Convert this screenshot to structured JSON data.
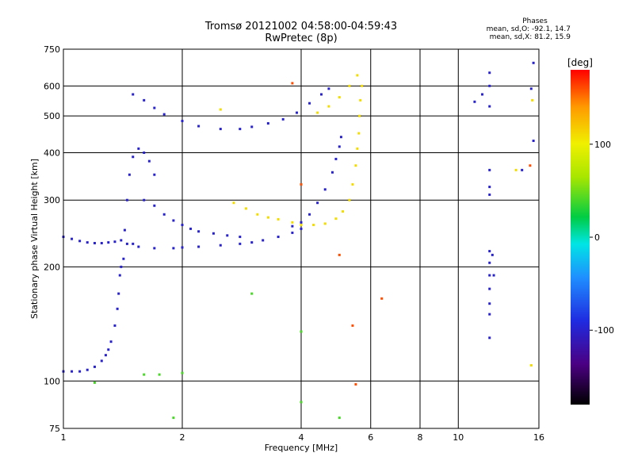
{
  "title": {
    "line1": "Tromsø 20121002 04:58:00-04:59:43",
    "line2": "RwPretec (8p)"
  },
  "phase_stats": {
    "label": "Phases",
    "o_line": "mean, sd,O: -92.1, 14.7",
    "x_line": "mean, sd,X: 81.2, 15.9"
  },
  "colorbar": {
    "unit": "[deg]",
    "ticks": [
      {
        "label": "100",
        "value": 100
      },
      {
        "label": "0",
        "value": 0
      },
      {
        "label": "-100",
        "value": -100
      }
    ],
    "range": [
      -180,
      180
    ]
  },
  "chart_data": {
    "type": "scatter",
    "title": "Tromsø 20121002 04:58:00-04:59:43",
    "subtitle": "RwPretec (8p)",
    "xlabel": "Frequency [MHz]",
    "ylabel": "Stationary phase Virtual Height [km]",
    "xscale": "log",
    "yscale": "log",
    "xlim": [
      1,
      16
    ],
    "ylim": [
      75,
      750
    ],
    "xticks": [
      {
        "label": "1",
        "value": 1
      },
      {
        "label": "2",
        "value": 2
      },
      {
        "label": "4",
        "value": 4
      },
      {
        "label": "6",
        "value": 6
      },
      {
        "label": "8",
        "value": 8
      },
      {
        "label": "10",
        "value": 10
      },
      {
        "label": "16",
        "value": 16
      }
    ],
    "yticks": [
      {
        "label": "75",
        "value": 75
      },
      {
        "label": "100",
        "value": 100
      },
      {
        "label": "200",
        "value": 200
      },
      {
        "label": "300",
        "value": 300
      },
      {
        "label": "400",
        "value": 400
      },
      {
        "label": "500",
        "value": 500
      },
      {
        "label": "600",
        "value": 600
      },
      {
        "label": "750",
        "value": 750
      }
    ],
    "grid": true,
    "color_encoding": "phase [deg]",
    "traces": [
      {
        "name": "",
        "phase": -100,
        "points": [
          [
            1.0,
            240
          ],
          [
            1.05,
            237
          ],
          [
            1.1,
            234
          ],
          [
            1.15,
            232
          ],
          [
            1.2,
            231
          ],
          [
            1.25,
            231
          ],
          [
            1.3,
            232
          ],
          [
            1.35,
            233
          ],
          [
            1.4,
            235
          ]
        ]
      },
      {
        "name": "",
        "phase": -100,
        "points": [
          [
            1.0,
            106
          ],
          [
            1.05,
            106
          ],
          [
            1.1,
            106
          ],
          [
            1.15,
            107
          ],
          [
            1.2,
            109
          ],
          [
            1.25,
            113
          ],
          [
            1.28,
            117
          ],
          [
            1.3,
            121
          ],
          [
            1.32,
            127
          ],
          [
            1.35,
            140
          ],
          [
            1.37,
            155
          ],
          [
            1.38,
            170
          ],
          [
            1.39,
            190
          ],
          [
            1.4,
            200
          ],
          [
            1.42,
            210
          ]
        ]
      },
      {
        "name": "",
        "phase": -100,
        "points": [
          [
            1.43,
            250
          ],
          [
            1.45,
            300
          ],
          [
            1.47,
            350
          ],
          [
            1.5,
            390
          ],
          [
            1.55,
            410
          ],
          [
            1.6,
            400
          ],
          [
            1.65,
            380
          ],
          [
            1.7,
            350
          ]
        ]
      },
      {
        "name": "",
        "phase": -100,
        "points": [
          [
            1.5,
            230
          ],
          [
            1.6,
            300
          ],
          [
            1.7,
            290
          ],
          [
            1.8,
            275
          ],
          [
            1.9,
            265
          ],
          [
            2.0,
            258
          ],
          [
            2.1,
            252
          ],
          [
            2.2,
            248
          ],
          [
            2.4,
            245
          ],
          [
            2.6,
            242
          ],
          [
            2.8,
            240
          ]
        ]
      },
      {
        "name": "",
        "phase": -100,
        "points": [
          [
            1.45,
            230
          ],
          [
            1.55,
            226
          ],
          [
            1.7,
            224
          ],
          [
            1.9,
            224
          ],
          [
            2.0,
            225
          ],
          [
            2.2,
            226
          ],
          [
            2.5,
            228
          ],
          [
            2.8,
            230
          ],
          [
            3.0,
            232
          ],
          [
            3.2,
            235
          ],
          [
            3.5,
            240
          ],
          [
            3.8,
            246
          ],
          [
            4.0,
            252
          ]
        ]
      },
      {
        "name": "",
        "phase": -100,
        "points": [
          [
            3.8,
            256
          ],
          [
            4.0,
            262
          ],
          [
            4.2,
            275
          ],
          [
            4.4,
            295
          ],
          [
            4.6,
            320
          ],
          [
            4.8,
            355
          ],
          [
            4.9,
            385
          ],
          [
            5.0,
            415
          ],
          [
            5.05,
            440
          ]
        ]
      },
      {
        "name": "",
        "phase": -100,
        "points": [
          [
            1.5,
            570
          ],
          [
            1.6,
            550
          ],
          [
            1.7,
            525
          ],
          [
            1.8,
            505
          ],
          [
            2.0,
            485
          ],
          [
            2.2,
            470
          ],
          [
            2.5,
            462
          ],
          [
            2.8,
            462
          ],
          [
            3.0,
            468
          ],
          [
            3.3,
            478
          ],
          [
            3.6,
            490
          ],
          [
            3.9,
            510
          ],
          [
            4.2,
            540
          ],
          [
            4.5,
            570
          ],
          [
            4.7,
            590
          ]
        ]
      },
      {
        "name": "",
        "phase": 110,
        "points": [
          [
            2.7,
            295
          ],
          [
            2.9,
            285
          ],
          [
            3.1,
            275
          ],
          [
            3.3,
            270
          ],
          [
            3.5,
            267
          ],
          [
            3.8,
            262
          ],
          [
            4.0,
            258
          ],
          [
            4.3,
            258
          ],
          [
            4.6,
            260
          ],
          [
            4.9,
            268
          ],
          [
            5.1,
            280
          ],
          [
            5.3,
            300
          ],
          [
            5.4,
            330
          ],
          [
            5.5,
            370
          ],
          [
            5.55,
            410
          ],
          [
            5.6,
            450
          ],
          [
            5.62,
            500
          ],
          [
            5.65,
            550
          ]
        ]
      },
      {
        "name": "",
        "phase": 110,
        "points": [
          [
            4.4,
            510
          ],
          [
            4.7,
            530
          ],
          [
            5.0,
            560
          ],
          [
            5.3,
            600
          ],
          [
            5.55,
            640
          ]
        ]
      },
      {
        "name": "",
        "phase": -100,
        "points": [
          [
            12.0,
            650
          ],
          [
            12.0,
            600
          ],
          [
            12.0,
            530
          ],
          [
            12.0,
            360
          ],
          [
            12.0,
            325
          ],
          [
            12.0,
            310
          ],
          [
            12.0,
            220
          ],
          [
            12.0,
            205
          ],
          [
            12.0,
            190
          ],
          [
            12.0,
            175
          ],
          [
            12.0,
            160
          ],
          [
            12.0,
            150
          ],
          [
            12.0,
            130
          ],
          [
            11.5,
            570
          ],
          [
            11.0,
            545
          ]
        ]
      },
      {
        "name": "",
        "phase": -100,
        "points": [
          [
            15.5,
            690
          ],
          [
            15.3,
            590
          ],
          [
            15.5,
            430
          ],
          [
            14.5,
            360
          ],
          [
            12.3,
            190
          ],
          [
            12.2,
            215
          ]
        ]
      },
      {
        "name": "",
        "phase": 110,
        "points": [
          [
            15.4,
            550
          ],
          [
            15.3,
            110
          ],
          [
            14.0,
            360
          ],
          [
            2.5,
            520
          ],
          [
            5.7,
            600
          ]
        ]
      },
      {
        "name": "",
        "phase": 160,
        "points": [
          [
            4.0,
            330
          ],
          [
            5.0,
            215
          ],
          [
            5.4,
            140
          ],
          [
            6.4,
            165
          ],
          [
            5.5,
            98
          ],
          [
            3.8,
            610
          ],
          [
            15.2,
            370
          ]
        ]
      },
      {
        "name": "",
        "phase": 40,
        "points": [
          [
            4.0,
            88
          ],
          [
            4.0,
            135
          ],
          [
            5.0,
            80
          ],
          [
            1.9,
            80
          ],
          [
            2.0,
            105
          ],
          [
            1.2,
            99
          ],
          [
            1.75,
            104
          ],
          [
            1.6,
            104
          ],
          [
            3.0,
            170
          ]
        ]
      }
    ]
  }
}
